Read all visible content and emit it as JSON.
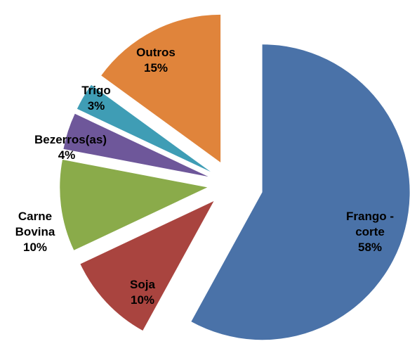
{
  "chart_data": {
    "type": "pie",
    "categories": [
      "Frango - corte",
      "Soja",
      "Carne Bovina",
      "Bezerros(as)",
      "Trigo",
      "Outros"
    ],
    "values": [
      58,
      10,
      10,
      4,
      3,
      15
    ],
    "value_labels": [
      "58%",
      "10%",
      "10%",
      "4%",
      "3%",
      "15%"
    ],
    "colors": [
      "#4a72a8",
      "#a9443f",
      "#8aab4a",
      "#6e579a",
      "#3f9db5",
      "#e0843b"
    ]
  }
}
